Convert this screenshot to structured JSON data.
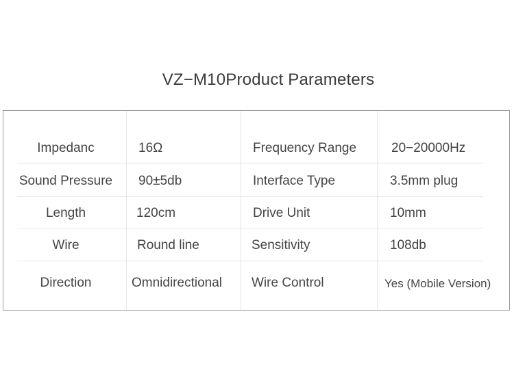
{
  "title": "VZ−M10Product Parameters",
  "table": {
    "rows": [
      [
        "Impedanc",
        "16Ω",
        "Frequency Range",
        "20−20000Hz"
      ],
      [
        "Sound Pressure",
        "90±5db",
        "Interface Type",
        "3.5mm plug"
      ],
      [
        "Length",
        "120cm",
        "Drive Unit",
        "10mm"
      ],
      [
        "Wire",
        "Round line",
        "Sensitivity",
        "108db"
      ],
      [
        "Direction",
        "Omnidirectional",
        "Wire Control",
        "Yes (Mobile Version)"
      ]
    ]
  },
  "colors": {
    "text": "#444444",
    "border": "#9a9a9a",
    "grid": "#e6e6e6"
  }
}
